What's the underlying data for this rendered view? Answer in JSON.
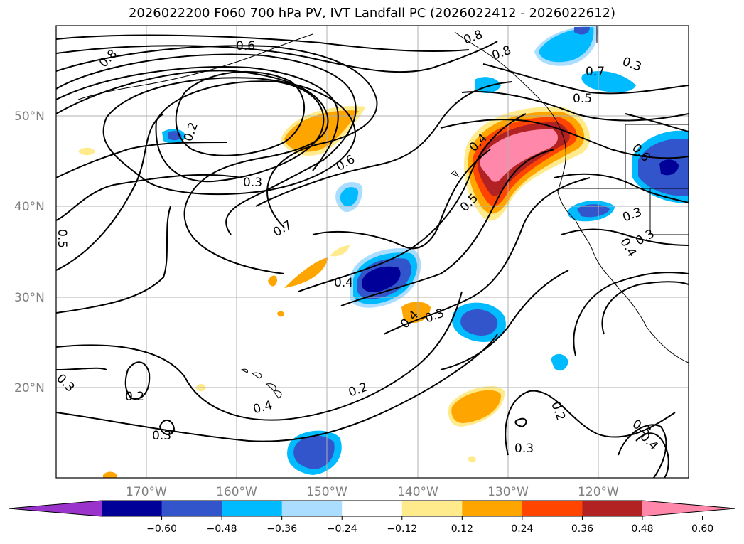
{
  "title": "2026022200 F060 700 hPa PV, IVT Landfall PC (2026022412 - 2026022612)",
  "lat_labels": [
    "50°N",
    "40°N",
    "30°N",
    "20°N"
  ],
  "lon_labels": [
    "170°W",
    "160°W",
    "150°W",
    "140°W",
    "130°W",
    "120°W"
  ],
  "colorbar": {
    "colors": [
      "#9933cc",
      "#000099",
      "#3355cc",
      "#00bbff",
      "#aaddff",
      "#ffffff",
      "#ffeb8c",
      "#ffa500",
      "#ff4500",
      "#b22222",
      "#ff88aa"
    ],
    "ticks": [
      "−0.60",
      "−0.48",
      "−0.36",
      "−0.24",
      "−0.12",
      "0.12",
      "0.24",
      "0.36",
      "0.48",
      "0.60"
    ]
  },
  "contour_labels": [
    "0.8",
    "0.6",
    "0.2",
    "0.3",
    "0.6",
    "0.7",
    "0.5",
    "0.4",
    "0.4",
    "0.3",
    "0.2",
    "0.4",
    "0.3",
    "0.2",
    "0.3",
    "0.3",
    "0.8",
    "0.8",
    "0.7",
    "0.5",
    "0.4",
    "0.5",
    "0.6",
    "0.3",
    "0.4",
    "0.2",
    "0.3",
    "0.3",
    "0.4",
    "0.3"
  ]
}
